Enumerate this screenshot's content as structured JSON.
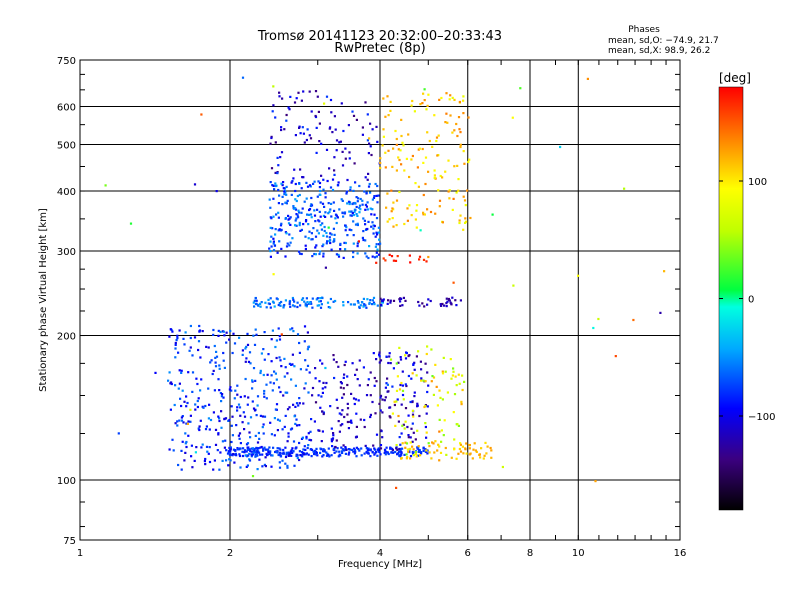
{
  "chart_data": {
    "type": "scatter",
    "title": "Tromsø 20141123 20:32:00–20:33:43",
    "subtitle": "RwPretec (8p)",
    "phases_block": {
      "heading": "Phases",
      "line_o": "mean, sd,O: −74.9, 21.7",
      "line_x": "mean, sd,X:  98.9, 26.2"
    },
    "xlabel": "Frequency [MHz]",
    "ylabel": "Stationary phase Virtual Height [km]",
    "x_scale": "log",
    "y_scale": "log",
    "xlim": [
      1,
      16
    ],
    "ylim": [
      75,
      750
    ],
    "x_ticks": [
      1,
      2,
      4,
      6,
      8,
      10,
      16
    ],
    "x_tick_labels": [
      "1",
      "2",
      "4",
      "6",
      "8",
      "10",
      "16"
    ],
    "y_ticks": [
      75,
      100,
      200,
      300,
      400,
      500,
      600,
      750
    ],
    "y_tick_labels": [
      "75",
      "100",
      "200",
      "300",
      "400",
      "500",
      "600",
      "750"
    ],
    "grid_x": [
      2,
      4,
      6,
      8,
      10
    ],
    "grid_y": [
      100,
      200,
      300,
      400,
      500,
      600
    ],
    "colorbar": {
      "label": "[deg]",
      "range": [
        -180,
        180
      ],
      "ticks": [
        100,
        0,
        -100
      ],
      "tick_labels": [
        "100",
        "0",
        "−100"
      ]
    },
    "clusters": [
      {
        "note": "E-layer flat trace",
        "f": [
          1.95,
          5.0
        ],
        "h": [
          112,
          117
        ],
        "phase": [
          -90,
          -70
        ],
        "n": 280
      },
      {
        "note": "E-layer trace high-frequency end",
        "f": [
          4.4,
          6.7
        ],
        "h": [
          110,
          120
        ],
        "phase": [
          100,
          130
        ],
        "n": 60
      },
      {
        "note": "Es/E cloud",
        "f": [
          1.5,
          2.9
        ],
        "h": [
          105,
          210
        ],
        "phase": [
          -110,
          -50
        ],
        "n": 420
      },
      {
        "note": "E cloud upper frequency",
        "f": [
          2.9,
          5.0
        ],
        "h": [
          115,
          185
        ],
        "phase": [
          -140,
          -80
        ],
        "n": 220
      },
      {
        "note": "E cloud near 5 MHz",
        "f": [
          4.2,
          5.9
        ],
        "h": [
          112,
          190
        ],
        "phase": [
          30,
          130
        ],
        "n": 90
      },
      {
        "note": "F-region cloud",
        "f": [
          2.4,
          4.0
        ],
        "h": [
          290,
          420
        ],
        "phase": [
          -100,
          -40
        ],
        "n": 360
      },
      {
        "note": "F-region sparse top",
        "f": [
          2.4,
          4.0
        ],
        "h": [
          420,
          650
        ],
        "phase": [
          -140,
          -70
        ],
        "n": 110
      },
      {
        "note": "F-region high",
        "f": [
          4.0,
          6.1
        ],
        "h": [
          330,
          640
        ],
        "phase": [
          80,
          140
        ],
        "n": 160
      },
      {
        "note": "F trace near 230 km",
        "f": [
          2.2,
          4.1
        ],
        "h": [
          228,
          240
        ],
        "phase": [
          -80,
          -40
        ],
        "n": 110
      },
      {
        "note": "F trace near 230 km upper",
        "f": [
          4.0,
          5.9
        ],
        "h": [
          230,
          240
        ],
        "phase": [
          -140,
          -100
        ],
        "n": 45
      },
      {
        "note": "Patch near 290 km",
        "f": [
          3.8,
          5.0
        ],
        "h": [
          283,
          296
        ],
        "phase": [
          160,
          178
        ],
        "n": 14
      },
      {
        "note": "Scattered outliers",
        "f": [
          1.1,
          15
        ],
        "h": [
          95,
          700
        ],
        "phase": [
          -150,
          178
        ],
        "n": 45
      }
    ]
  }
}
